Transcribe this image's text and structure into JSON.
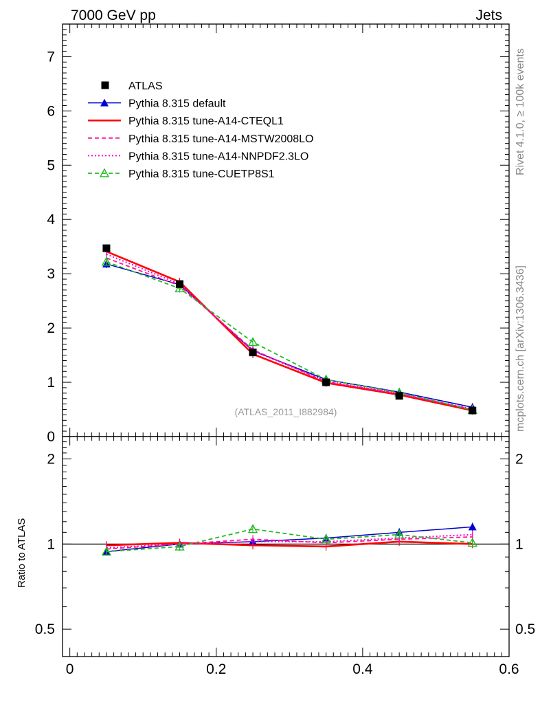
{
  "header": {
    "left": "7000 GeV pp",
    "right": "Jets"
  },
  "side_labels": {
    "top": "Rivet 4.1.0, ≥ 100k events",
    "bottom": "mcplots.cern.ch [arXiv:1306.3436]"
  },
  "chart_data": {
    "type": "line",
    "analysis_label": "(ATLAS_2011_I882984)",
    "x": [
      0.05,
      0.15,
      0.25,
      0.35,
      0.45,
      0.55
    ],
    "xlim": [
      -0.01,
      0.6
    ],
    "xticks": [
      "0",
      "0.2",
      "0.4",
      "0.6"
    ],
    "main": {
      "ylim": [
        0,
        7.6
      ],
      "yticks": [
        "0",
        "1",
        "2",
        "3",
        "4",
        "5",
        "6",
        "7"
      ]
    },
    "ratio": {
      "ylabel": "Ratio to ATLAS",
      "yticks": [
        "0.5",
        "1",
        "2"
      ],
      "ylim": [
        0.4,
        2.4
      ]
    },
    "series": [
      {
        "name": "ATLAS",
        "color": "#000000",
        "style": "data",
        "marker": "square",
        "values": [
          3.47,
          2.81,
          1.55,
          1.0,
          0.75,
          0.48
        ],
        "errors": [
          0.07,
          0.07,
          0.06,
          0.04,
          0.04,
          0.03
        ],
        "ratio": [
          1.0,
          1.0,
          1.0,
          1.0,
          1.0,
          1.0
        ]
      },
      {
        "name": "Pythia 8.315 default",
        "color": "#0000cc",
        "style": "solid",
        "marker": "triangle",
        "values": [
          3.18,
          2.8,
          1.58,
          1.05,
          0.82,
          0.54
        ],
        "ratio": [
          0.94,
          1.0,
          1.02,
          1.05,
          1.1,
          1.15
        ]
      },
      {
        "name": "Pythia 8.315 tune-A14-CTEQL1",
        "color": "#ff0000",
        "style": "solid-thick",
        "marker": "none",
        "values": [
          3.41,
          2.85,
          1.52,
          0.99,
          0.77,
          0.48
        ],
        "ratio": [
          0.99,
          1.01,
          0.99,
          0.98,
          1.02,
          1.0
        ]
      },
      {
        "name": "Pythia 8.315 tune-A14-MSTW2008LO",
        "color": "#ff1493",
        "style": "dashed",
        "marker": "none",
        "values": [
          3.29,
          2.78,
          1.6,
          1.01,
          0.79,
          0.5
        ],
        "ratio": [
          0.96,
          1.0,
          1.04,
          1.01,
          1.04,
          1.06
        ]
      },
      {
        "name": "Pythia 8.315 tune-A14-NNPDF2.3LO",
        "color": "#ff00cc",
        "style": "dotted",
        "marker": "none",
        "values": [
          3.36,
          2.81,
          1.58,
          1.02,
          0.79,
          0.51
        ],
        "ratio": [
          0.97,
          1.0,
          1.02,
          1.02,
          1.05,
          1.08
        ]
      },
      {
        "name": "Pythia 8.315 tune-CUETP8S1",
        "color": "#22bb22",
        "style": "dashed",
        "marker": "open-triangle",
        "values": [
          3.22,
          2.73,
          1.74,
          1.05,
          0.81,
          0.49
        ],
        "ratio": [
          0.94,
          0.98,
          1.13,
          1.04,
          1.08,
          1.01
        ]
      }
    ]
  }
}
